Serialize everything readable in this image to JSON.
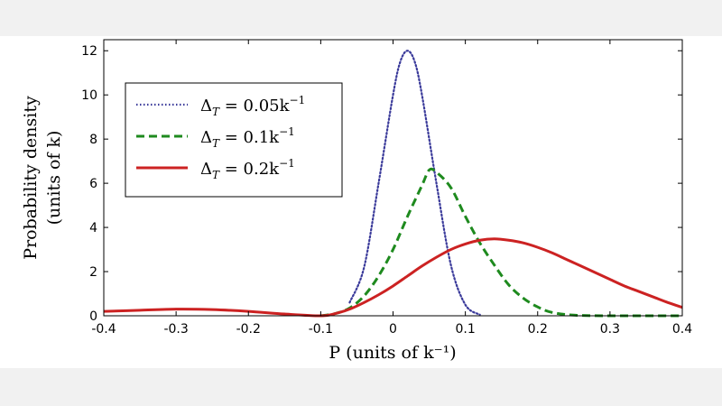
{
  "chart_data": {
    "type": "line",
    "xlabel": "P (units of k⁻¹)",
    "ylabel_line1": "Probability density",
    "ylabel_line2": "(units of k)",
    "xlim": [
      -0.4,
      0.4
    ],
    "ylim": [
      0,
      12.5
    ],
    "x_ticks": [
      -0.4,
      -0.3,
      -0.2,
      -0.1,
      0,
      0.1,
      0.2,
      0.3,
      0.4
    ],
    "x_tick_labels": [
      "-0.4",
      "-0.3",
      "-0.2",
      "-0.1",
      "0",
      "0.1",
      "0.2",
      "0.3",
      "0.4"
    ],
    "y_ticks": [
      0,
      2,
      4,
      6,
      8,
      10,
      12
    ],
    "y_tick_labels": [
      "0",
      "2",
      "4",
      "6",
      "8",
      "10",
      "12"
    ],
    "grid": false,
    "legend_position": "top-left",
    "series": [
      {
        "name": "ΔT = 0.05k⁻¹",
        "legend_prefix": "Δ",
        "legend_sub": "T",
        "legend_value": " = 0.05k",
        "legend_sup": "−1",
        "color": "#3a3a9a",
        "style": "dotted",
        "x": [
          -0.06,
          -0.04,
          -0.02,
          0.0,
          0.01,
          0.02,
          0.03,
          0.04,
          0.06,
          0.08,
          0.1,
          0.12
        ],
        "y": [
          0.6,
          2.2,
          6.0,
          10.0,
          11.5,
          12.0,
          11.5,
          10.0,
          6.0,
          2.3,
          0.5,
          0.05
        ]
      },
      {
        "name": "ΔT = 0.1k⁻¹",
        "legend_prefix": "Δ",
        "legend_sub": "T",
        "legend_value": " = 0.1k",
        "legend_sup": "−1",
        "color": "#1e8a1e",
        "style": "dashed",
        "x": [
          -0.1,
          -0.08,
          -0.06,
          -0.04,
          -0.02,
          0.0,
          0.02,
          0.04,
          0.05,
          0.06,
          0.08,
          0.1,
          0.12,
          0.14,
          0.16,
          0.18,
          0.2,
          0.22,
          0.25,
          0.3,
          0.4
        ],
        "y": [
          0.0,
          0.1,
          0.35,
          0.9,
          1.8,
          3.0,
          4.5,
          5.9,
          6.6,
          6.5,
          5.8,
          4.5,
          3.3,
          2.3,
          1.4,
          0.8,
          0.4,
          0.15,
          0.03,
          0.0,
          0.0
        ]
      },
      {
        "name": "ΔT = 0.2k⁻¹",
        "legend_prefix": "Δ",
        "legend_sub": "T",
        "legend_value": " = 0.2k",
        "legend_sup": "−1",
        "color": "#cc2222",
        "style": "solid",
        "x": [
          -0.4,
          -0.35,
          -0.3,
          -0.25,
          -0.2,
          -0.15,
          -0.1,
          -0.08,
          -0.06,
          -0.04,
          -0.02,
          0.0,
          0.02,
          0.04,
          0.06,
          0.08,
          0.1,
          0.12,
          0.14,
          0.16,
          0.18,
          0.2,
          0.22,
          0.24,
          0.26,
          0.28,
          0.3,
          0.32,
          0.34,
          0.36,
          0.38,
          0.4
        ],
        "y": [
          0.2,
          0.25,
          0.3,
          0.28,
          0.2,
          0.08,
          0.0,
          0.1,
          0.3,
          0.6,
          0.95,
          1.35,
          1.8,
          2.25,
          2.65,
          3.0,
          3.25,
          3.42,
          3.48,
          3.42,
          3.3,
          3.1,
          2.85,
          2.55,
          2.25,
          1.95,
          1.65,
          1.35,
          1.1,
          0.85,
          0.6,
          0.38
        ]
      }
    ]
  }
}
